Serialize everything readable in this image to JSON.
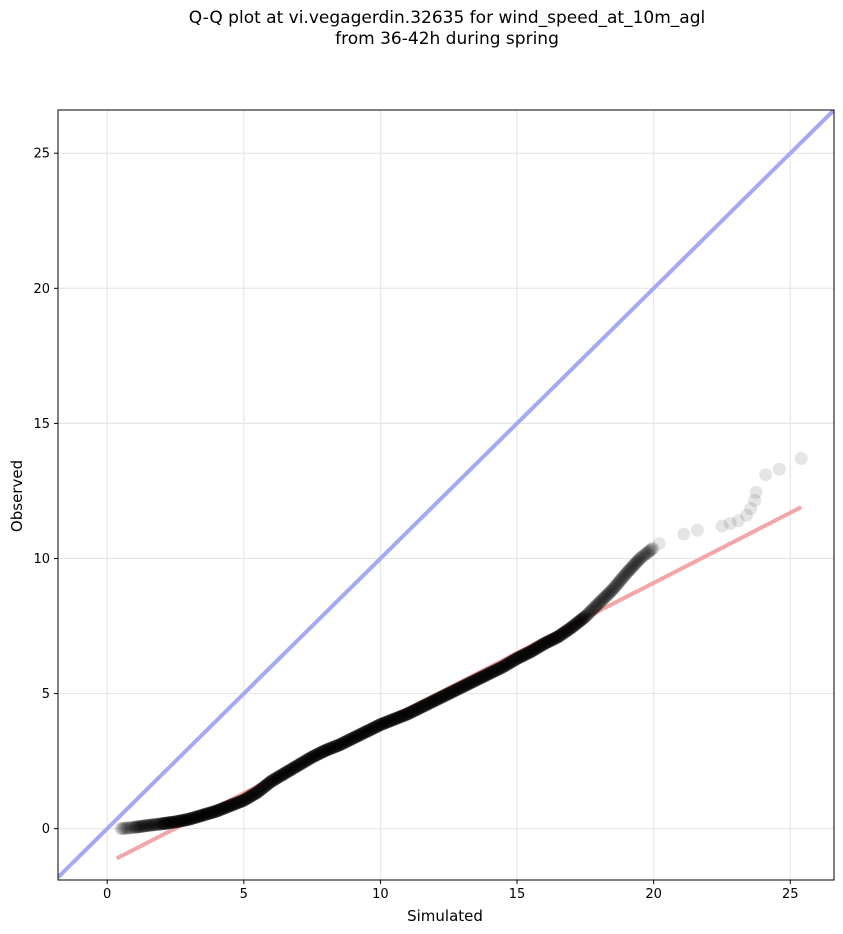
{
  "title_line1": "Q-Q plot at vi.vegagerdin.32635 for wind_speed_at_10m_agl",
  "title_line2": "from 36-42h during spring",
  "chart_data": {
    "type": "scatter",
    "title": "Q-Q plot at vi.vegagerdin.32635 for wind_speed_at_10m_agl\nfrom 36-42h during spring",
    "xlabel": "Simulated",
    "ylabel": "Observed",
    "xlim": [
      -1.8,
      26.6
    ],
    "ylim": [
      -1.9,
      26.6
    ],
    "x_ticks": [
      0,
      5,
      10,
      15,
      20,
      25
    ],
    "y_ticks": [
      0,
      5,
      10,
      15,
      20,
      25
    ],
    "grid": true,
    "reference_line": {
      "name": "1:1",
      "color": "#a5a9f4",
      "points": [
        [
          -1.8,
          -1.8
        ],
        [
          26.6,
          26.6
        ]
      ]
    },
    "fit_line": {
      "color": "#f4a5a5",
      "points": [
        [
          0.35,
          -1.1
        ],
        [
          25.4,
          11.9
        ]
      ]
    },
    "quantile_curve_points": [
      [
        0.5,
        0.0
      ],
      [
        1.0,
        0.05
      ],
      [
        1.5,
        0.12
      ],
      [
        2.0,
        0.18
      ],
      [
        2.5,
        0.25
      ],
      [
        3.0,
        0.35
      ],
      [
        3.5,
        0.5
      ],
      [
        4.0,
        0.65
      ],
      [
        4.5,
        0.85
      ],
      [
        5.0,
        1.05
      ],
      [
        5.5,
        1.35
      ],
      [
        6.0,
        1.75
      ],
      [
        6.5,
        2.05
      ],
      [
        7.0,
        2.35
      ],
      [
        7.5,
        2.65
      ],
      [
        8.0,
        2.9
      ],
      [
        8.5,
        3.1
      ],
      [
        9.0,
        3.35
      ],
      [
        9.5,
        3.6
      ],
      [
        10.0,
        3.85
      ],
      [
        10.5,
        4.05
      ],
      [
        11.0,
        4.25
      ],
      [
        11.5,
        4.5
      ],
      [
        12.0,
        4.75
      ],
      [
        12.5,
        5.0
      ],
      [
        13.0,
        5.25
      ],
      [
        13.5,
        5.5
      ],
      [
        14.0,
        5.75
      ],
      [
        14.5,
        6.0
      ],
      [
        15.0,
        6.3
      ],
      [
        15.5,
        6.55
      ],
      [
        16.0,
        6.85
      ],
      [
        16.5,
        7.1
      ],
      [
        17.0,
        7.45
      ],
      [
        17.5,
        7.85
      ],
      [
        18.0,
        8.35
      ],
      [
        18.5,
        8.85
      ],
      [
        19.0,
        9.45
      ],
      [
        19.5,
        10.0
      ],
      [
        20.0,
        10.4
      ]
    ],
    "tail_points": [
      [
        20.2,
        10.55
      ],
      [
        21.1,
        10.9
      ],
      [
        21.6,
        11.05
      ],
      [
        22.5,
        11.2
      ],
      [
        22.8,
        11.3
      ],
      [
        23.1,
        11.4
      ],
      [
        23.4,
        11.6
      ],
      [
        23.55,
        11.85
      ],
      [
        23.7,
        12.15
      ],
      [
        23.75,
        12.45
      ],
      [
        24.1,
        13.1
      ],
      [
        24.6,
        13.3
      ],
      [
        25.4,
        13.7
      ]
    ],
    "marker_color": "#000000"
  }
}
